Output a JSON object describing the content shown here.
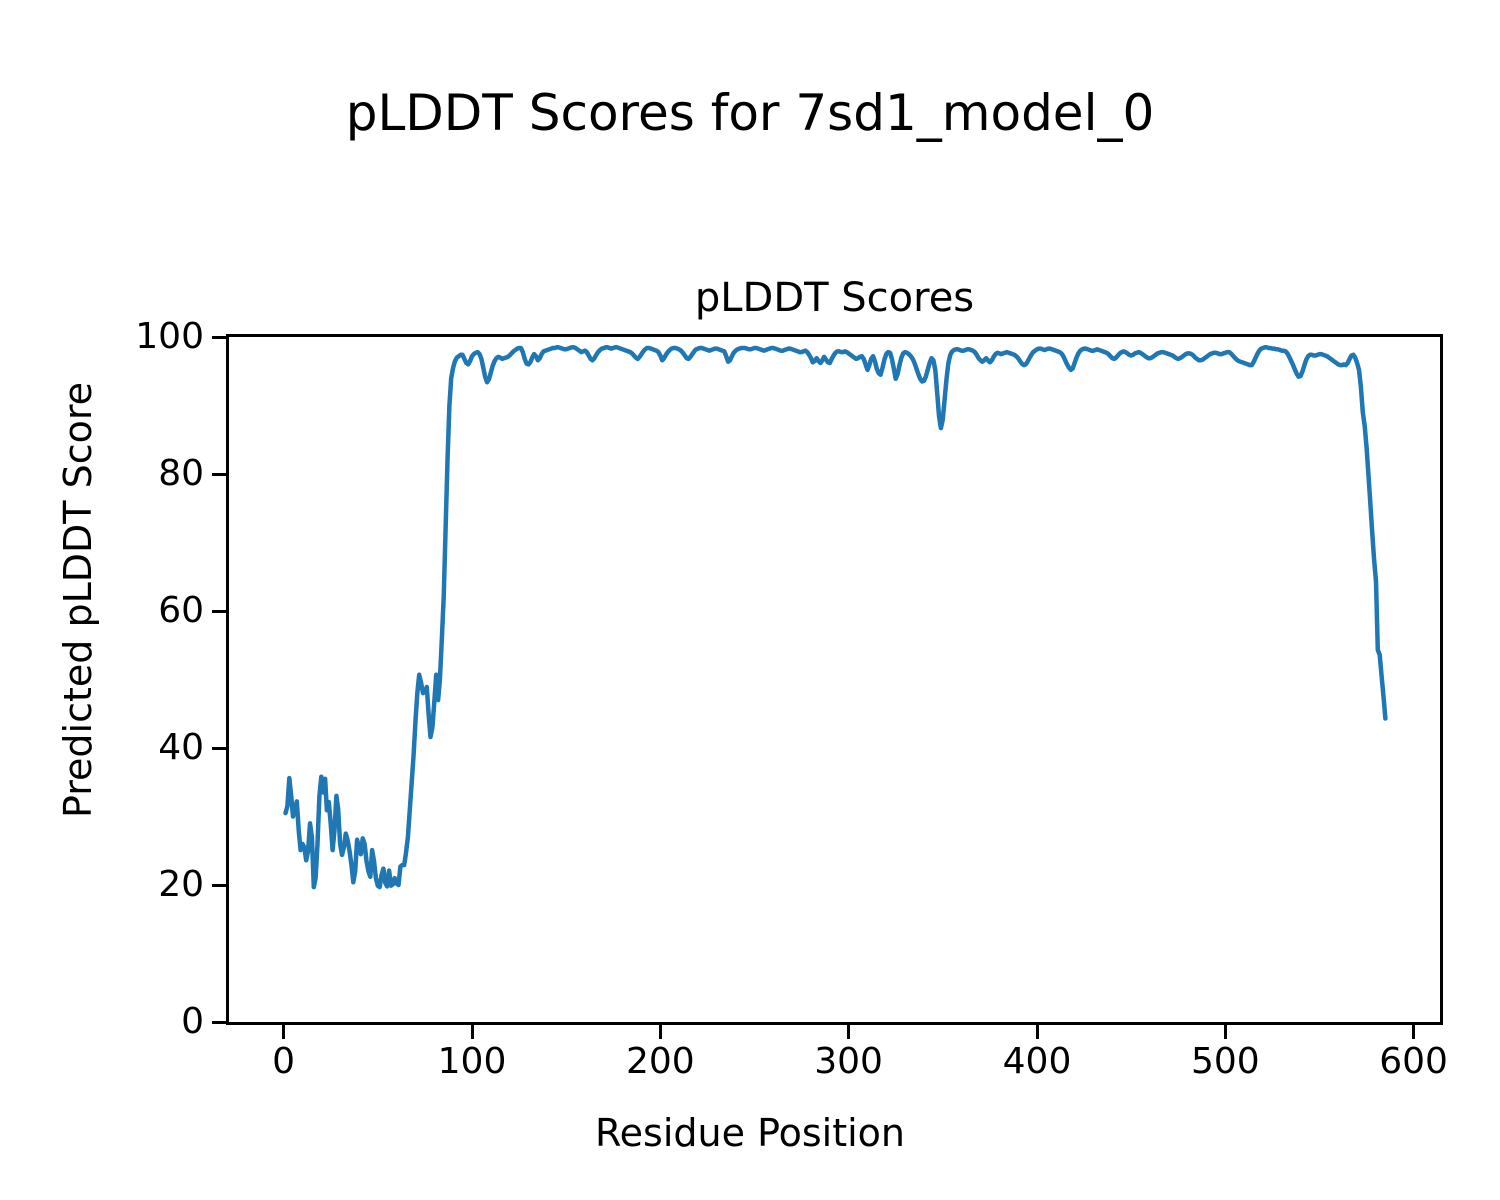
{
  "figure": {
    "suptitle": "pLDDT Scores for 7sd1_model_0",
    "axes_title": "pLDDT Scores",
    "xlabel": "Residue Position",
    "ylabel": "Predicted pLDDT Score"
  },
  "chart_data": {
    "type": "line",
    "title": "pLDDT Scores",
    "suptitle": "pLDDT Scores for 7sd1_model_0",
    "xlabel": "Residue Position",
    "ylabel": "Predicted pLDDT Score",
    "xlim": [
      -29,
      614
    ],
    "ylim": [
      0,
      100
    ],
    "xticks": [
      0,
      100,
      200,
      300,
      400,
      500,
      600
    ],
    "yticks": [
      0,
      20,
      40,
      60,
      80,
      100
    ],
    "grid": false,
    "line_color": "#1f77b4",
    "line_width": 4.5,
    "series": [
      {
        "name": "pLDDT",
        "x_start": 1,
        "x_step": 1,
        "y": [
          30.5,
          31.5,
          35.6,
          33.0,
          30.0,
          31.0,
          32.2,
          28.0,
          25.1,
          26.0,
          25.5,
          23.6,
          25.0,
          29.0,
          27.0,
          19.7,
          21.0,
          26.0,
          33.0,
          35.8,
          33.5,
          35.5,
          30.9,
          32.1,
          29.0,
          25.1,
          28.0,
          33.0,
          31.0,
          26.0,
          24.4,
          25.5,
          27.5,
          26.5,
          25.0,
          23.0,
          20.4,
          22.0,
          26.6,
          25.5,
          24.5,
          26.8,
          26.0,
          23.5,
          22.0,
          21.2,
          25.1,
          23.5,
          21.0,
          19.9,
          19.7,
          21.5,
          22.4,
          20.3,
          19.8,
          22.1,
          19.9,
          20.1,
          21.0,
          20.2,
          20.0,
          22.7,
          22.9,
          22.9,
          24.7,
          27.0,
          31.0,
          35.0,
          39.0,
          44.0,
          48.0,
          50.7,
          49.5,
          48.0,
          48.2,
          48.9,
          45.0,
          41.6,
          43.0,
          46.7,
          50.7,
          47.0,
          50.0,
          55.8,
          62.0,
          72.0,
          82.0,
          90.0,
          94.0,
          95.5,
          96.5,
          97.0,
          97.2,
          97.4,
          97.4,
          96.8,
          96.2,
          96.0,
          96.5,
          97.2,
          97.5,
          97.7,
          97.8,
          97.5,
          96.8,
          95.5,
          94.2,
          93.4,
          93.8,
          94.8,
          95.8,
          96.5,
          96.9,
          97.1,
          97.0,
          96.8,
          96.9,
          97.0,
          97.1,
          97.3,
          97.6,
          97.9,
          98.1,
          98.3,
          98.4,
          98.4,
          97.8,
          96.8,
          96.1,
          96.0,
          96.3,
          97.0,
          97.5,
          97.2,
          96.6,
          96.9,
          97.5,
          97.9,
          98.0,
          98.1,
          98.2,
          98.3,
          98.4,
          98.4,
          98.5,
          98.5,
          98.4,
          98.3,
          98.2,
          98.2,
          98.3,
          98.4,
          98.5,
          98.5,
          98.4,
          98.2,
          98.0,
          97.8,
          97.9,
          98.0,
          97.8,
          97.3,
          96.8,
          96.6,
          96.9,
          97.4,
          97.8,
          98.1,
          98.3,
          98.4,
          98.5,
          98.5,
          98.4,
          98.3,
          98.4,
          98.5,
          98.5,
          98.4,
          98.3,
          98.2,
          98.1,
          98.0,
          97.9,
          97.8,
          97.6,
          97.3,
          97.0,
          96.8,
          97.1,
          97.5,
          97.9,
          98.2,
          98.4,
          98.4,
          98.3,
          98.2,
          98.1,
          98.0,
          97.8,
          97.3,
          96.6,
          96.9,
          97.4,
          97.8,
          98.1,
          98.3,
          98.4,
          98.4,
          98.3,
          98.2,
          98.0,
          97.7,
          97.3,
          96.9,
          96.8,
          97.1,
          97.5,
          97.9,
          98.2,
          98.3,
          98.4,
          98.4,
          98.3,
          98.2,
          98.1,
          98.0,
          98.1,
          98.2,
          98.3,
          98.3,
          98.2,
          98.1,
          98.0,
          97.9,
          97.2,
          96.4,
          96.6,
          97.2,
          97.7,
          98.0,
          98.2,
          98.3,
          98.4,
          98.4,
          98.4,
          98.3,
          98.2,
          98.2,
          98.3,
          98.4,
          98.4,
          98.3,
          98.2,
          98.1,
          98.0,
          98.1,
          98.2,
          98.3,
          98.4,
          98.4,
          98.3,
          98.2,
          98.1,
          98.0,
          98.0,
          98.1,
          98.2,
          98.3,
          98.3,
          98.2,
          98.1,
          98.0,
          97.9,
          97.8,
          97.8,
          97.9,
          98.0,
          97.8,
          97.4,
          96.9,
          96.3,
          96.5,
          96.9,
          96.5,
          96.2,
          96.6,
          97.1,
          96.7,
          96.3,
          96.2,
          96.8,
          97.3,
          97.7,
          97.9,
          97.9,
          97.8,
          97.8,
          97.9,
          97.8,
          97.6,
          97.4,
          97.2,
          97.0,
          96.8,
          96.9,
          97.1,
          97.2,
          96.8,
          96.0,
          95.2,
          95.9,
          96.8,
          97.2,
          96.4,
          95.3,
          94.7,
          94.5,
          95.5,
          96.7,
          97.5,
          97.8,
          97.7,
          96.8,
          95.4,
          93.9,
          94.6,
          95.9,
          97.0,
          97.6,
          97.8,
          97.7,
          97.5,
          97.2,
          96.8,
          96.2,
          95.4,
          94.6,
          93.9,
          93.5,
          93.6,
          94.2,
          95.2,
          96.2,
          96.9,
          96.6,
          95.2,
          92.0,
          88.5,
          86.7,
          88.0,
          91.0,
          94.0,
          96.2,
          97.4,
          97.9,
          98.1,
          98.2,
          98.2,
          98.1,
          98.0,
          98.0,
          98.1,
          98.2,
          98.2,
          98.1,
          98.0,
          97.8,
          97.4,
          96.9,
          96.6,
          96.4,
          96.6,
          96.9,
          96.6,
          96.3,
          96.6,
          97.1,
          97.5,
          97.7,
          97.6,
          97.5,
          97.6,
          97.7,
          97.8,
          97.7,
          97.6,
          97.5,
          97.4,
          97.2,
          96.9,
          96.5,
          96.1,
          95.9,
          96.0,
          96.4,
          96.9,
          97.4,
          97.8,
          98.0,
          98.2,
          98.3,
          98.3,
          98.2,
          98.1,
          98.2,
          98.3,
          98.3,
          98.2,
          98.1,
          98.0,
          97.9,
          97.8,
          97.6,
          97.2,
          96.6,
          96.0,
          95.5,
          95.2,
          95.4,
          96.2,
          97.0,
          97.6,
          98.0,
          98.2,
          98.3,
          98.3,
          98.2,
          98.1,
          98.0,
          98.0,
          98.1,
          98.2,
          98.1,
          98.0,
          97.9,
          97.8,
          97.7,
          97.5,
          97.2,
          96.9,
          96.8,
          97.0,
          97.3,
          97.6,
          97.8,
          97.9,
          97.8,
          97.6,
          97.4,
          97.3,
          97.4,
          97.6,
          97.7,
          97.8,
          97.7,
          97.5,
          97.3,
          97.1,
          96.9,
          96.9,
          97.0,
          97.2,
          97.4,
          97.6,
          97.7,
          97.8,
          97.8,
          97.7,
          97.6,
          97.5,
          97.4,
          97.3,
          97.1,
          96.9,
          96.8,
          96.9,
          97.1,
          97.3,
          97.5,
          97.6,
          97.6,
          97.5,
          97.3,
          97.0,
          96.8,
          96.6,
          96.6,
          96.7,
          96.9,
          97.1,
          97.3,
          97.5,
          97.6,
          97.7,
          97.7,
          97.6,
          97.5,
          97.5,
          97.6,
          97.7,
          97.8,
          97.8,
          97.6,
          97.3,
          97.0,
          96.7,
          96.5,
          96.4,
          96.3,
          96.2,
          96.1,
          96.0,
          95.9,
          95.9,
          96.3,
          96.9,
          97.5,
          98.0,
          98.3,
          98.4,
          98.5,
          98.5,
          98.4,
          98.4,
          98.3,
          98.3,
          98.2,
          98.2,
          98.1,
          98.0,
          98.0,
          97.9,
          97.6,
          97.1,
          96.5,
          95.9,
          95.2,
          94.6,
          94.2,
          94.3,
          95.0,
          95.9,
          96.7,
          97.2,
          97.4,
          97.4,
          97.3,
          97.3,
          97.4,
          97.5,
          97.5,
          97.4,
          97.3,
          97.2,
          97.0,
          96.8,
          96.6,
          96.4,
          96.2,
          96.0,
          95.9,
          95.9,
          96.0,
          95.9,
          96.2,
          96.8,
          97.3,
          97.4,
          97.0,
          96.2,
          95.2,
          92.7,
          89.0,
          87.0,
          84.0,
          80.0,
          75.8,
          71.5,
          67.5,
          64.3,
          54.3,
          53.6,
          50.5,
          47.5,
          44.3
        ]
      }
    ]
  }
}
